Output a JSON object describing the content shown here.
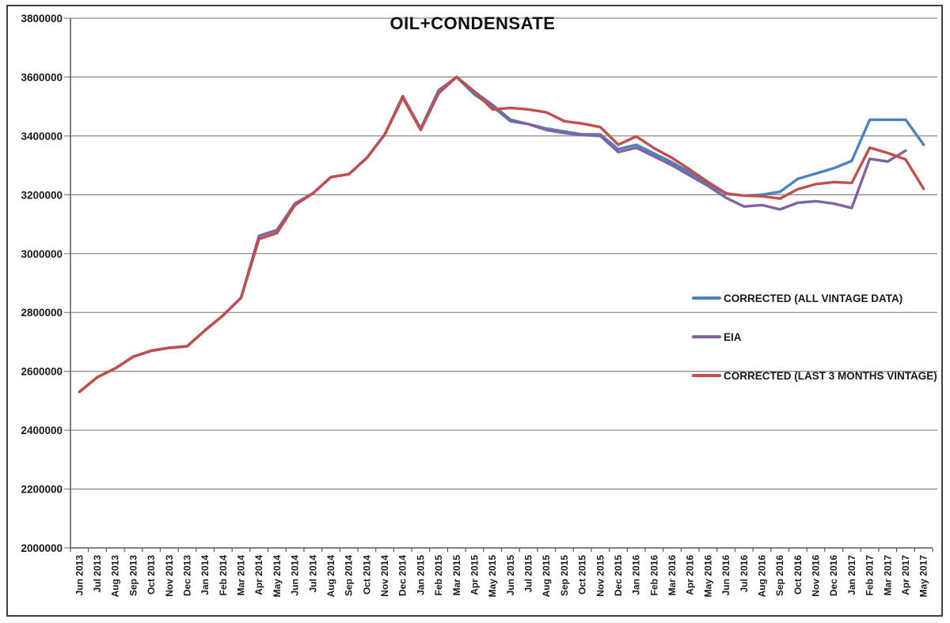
{
  "chart_data": {
    "type": "line",
    "title": "OIL+CONDENSATE",
    "xlabel": "",
    "ylabel": "",
    "ylim": [
      2000000,
      3800000
    ],
    "ytick_step": 200000,
    "grid": true,
    "legend_position": "middle-right",
    "categories": [
      "Jun 2013",
      "Jul 2013",
      "Aug 2013",
      "Sep 2013",
      "Oct 2013",
      "Nov 2013",
      "Dec 2013",
      "Jan 2014",
      "Feb 2014",
      "Mar 2014",
      "Apr 2014",
      "May 2014",
      "Jun 2014",
      "Jul 2014",
      "Aug 2014",
      "Sep 2014",
      "Oct 2014",
      "Nov 2014",
      "Dec 2014",
      "Jan 2015",
      "Feb 2015",
      "Mar 2015",
      "Apr 2015",
      "May 2015",
      "Jun 2015",
      "Jul 2015",
      "Aug 2015",
      "Sep 2015",
      "Oct 2015",
      "Nov 2015",
      "Dec 2015",
      "Jan 2016",
      "Feb 2016",
      "Mar 2016",
      "Apr 2016",
      "May 2016",
      "Jun 2016",
      "Jul 2016",
      "Aug 2016",
      "Sep 2016",
      "Oct 2016",
      "Nov 2016",
      "Dec 2016",
      "Jan 2017",
      "Feb 2017",
      "Mar 2017",
      "Apr 2017",
      "May 2017"
    ],
    "series": [
      {
        "name": "CORRECTED (ALL VINTAGE DATA)",
        "color": "#4F81BD",
        "values": [
          2530000,
          2580000,
          2610000,
          2650000,
          2670000,
          2680000,
          2685000,
          2740000,
          2790000,
          2850000,
          3060000,
          3080000,
          3170000,
          3205000,
          3260000,
          3270000,
          3325000,
          3405000,
          3530000,
          3425000,
          3550000,
          3600000,
          3540000,
          3500000,
          3450000,
          3440000,
          3425000,
          3415000,
          3405000,
          3405000,
          3355000,
          3370000,
          3340000,
          3310000,
          3275000,
          3238000,
          3203000,
          3197000,
          3200000,
          3210000,
          3254000,
          3272000,
          3290000,
          3315000,
          3455000,
          3455000,
          3455000,
          3370000
        ]
      },
      {
        "name": "EIA",
        "color": "#8064A2",
        "values": [
          2530000,
          2580000,
          2610000,
          2650000,
          2670000,
          2680000,
          2685000,
          2740000,
          2790000,
          2850000,
          3060000,
          3080000,
          3170000,
          3205000,
          3260000,
          3270000,
          3325000,
          3405000,
          3535000,
          3425000,
          3555000,
          3600000,
          3550000,
          3505000,
          3455000,
          3440000,
          3420000,
          3410000,
          3403000,
          3400000,
          3345000,
          3360000,
          3330000,
          3300000,
          3265000,
          3230000,
          3190000,
          3160000,
          3165000,
          3150000,
          3173000,
          3178000,
          3170000,
          3155000,
          3322000,
          3313000,
          3350000,
          null
        ]
      },
      {
        "name": "CORRECTED (LAST 3 MONTHS VINTAGE)",
        "color": "#C0504D",
        "values": [
          2530000,
          2580000,
          2610000,
          2650000,
          2670000,
          2680000,
          2685000,
          2740000,
          2790000,
          2850000,
          3050000,
          3070000,
          3165000,
          3205000,
          3260000,
          3270000,
          3325000,
          3405000,
          3530000,
          3420000,
          3545000,
          3600000,
          3550000,
          3490000,
          3495000,
          3490000,
          3480000,
          3450000,
          3442000,
          3430000,
          3370000,
          3398000,
          3358000,
          3325000,
          3285000,
          3243000,
          3205000,
          3197000,
          3195000,
          3187000,
          3219000,
          3236000,
          3243000,
          3240000,
          3360000,
          3342000,
          3320000,
          3220000
        ]
      }
    ]
  },
  "style": {
    "gridline_color": "#8c8c8c",
    "axis_color": "#595959",
    "tick_label_color": "#1a1a1a"
  }
}
